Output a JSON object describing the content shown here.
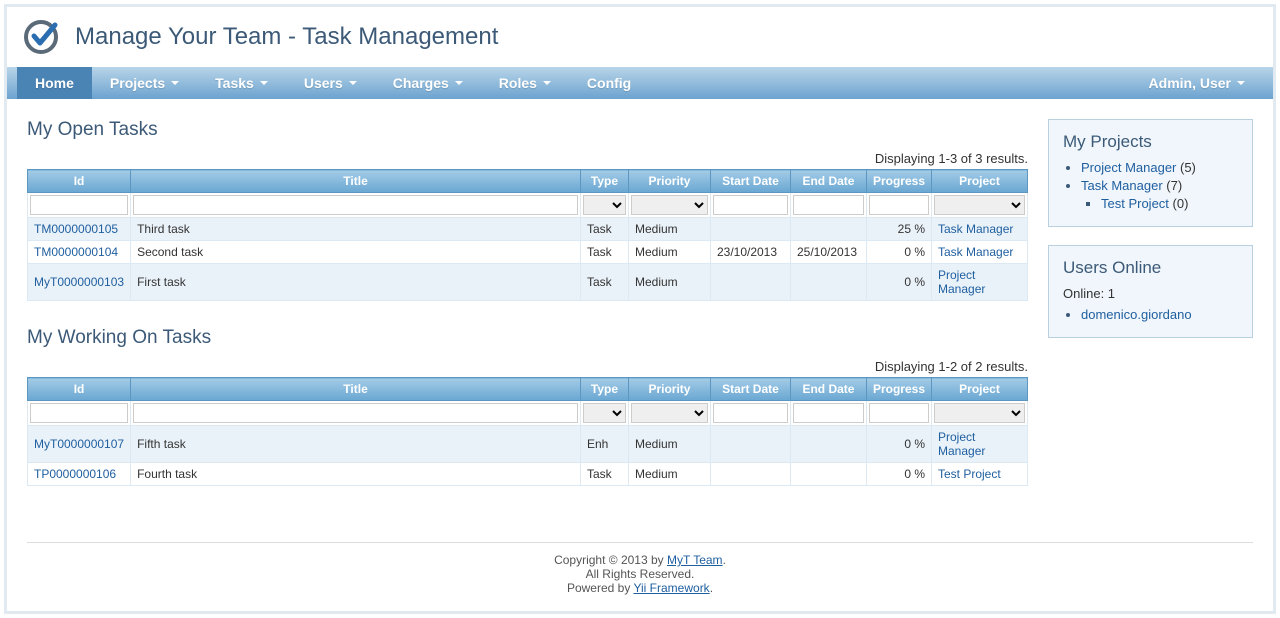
{
  "header": {
    "title": "Manage Your Team - Task Management"
  },
  "nav": {
    "items": [
      {
        "label": "Home",
        "dropdown": false,
        "active": true
      },
      {
        "label": "Projects",
        "dropdown": true,
        "active": false
      },
      {
        "label": "Tasks",
        "dropdown": true,
        "active": false
      },
      {
        "label": "Users",
        "dropdown": true,
        "active": false
      },
      {
        "label": "Charges",
        "dropdown": true,
        "active": false
      },
      {
        "label": "Roles",
        "dropdown": true,
        "active": false
      },
      {
        "label": "Config",
        "dropdown": false,
        "active": false
      }
    ],
    "user": {
      "label": "Admin, User",
      "dropdown": true
    }
  },
  "sections": {
    "open": {
      "title": "My Open Tasks",
      "summary": "Displaying 1-3 of 3 results.",
      "columns": [
        "Id",
        "Title",
        "Type",
        "Priority",
        "Start Date",
        "End Date",
        "Progress",
        "Project"
      ],
      "col_widths": [
        "97px",
        "auto",
        "48px",
        "82px",
        "80px",
        "76px",
        "60px",
        "96px"
      ],
      "filter_types": [
        "text",
        "text",
        "select",
        "select",
        "text",
        "text",
        "text",
        "select"
      ],
      "rows": [
        {
          "id": "TM0000000105",
          "title": "Third task",
          "type": "Task",
          "priority": "Medium",
          "start": "",
          "end": "",
          "progress": "25 %",
          "project": "Task Manager"
        },
        {
          "id": "TM0000000104",
          "title": "Second task",
          "type": "Task",
          "priority": "Medium",
          "start": "23/10/2013",
          "end": "25/10/2013",
          "progress": "0 %",
          "project": "Task Manager"
        },
        {
          "id": "MyT0000000103",
          "title": "First task",
          "type": "Task",
          "priority": "Medium",
          "start": "",
          "end": "",
          "progress": "0 %",
          "project": "Project Manager"
        }
      ]
    },
    "working": {
      "title": "My Working On Tasks",
      "summary": "Displaying 1-2 of 2 results.",
      "columns": [
        "Id",
        "Title",
        "Type",
        "Priority",
        "Start Date",
        "End Date",
        "Progress",
        "Project"
      ],
      "col_widths": [
        "97px",
        "auto",
        "48px",
        "82px",
        "80px",
        "76px",
        "60px",
        "96px"
      ],
      "filter_types": [
        "text",
        "text",
        "select",
        "select",
        "text",
        "text",
        "text",
        "select"
      ],
      "rows": [
        {
          "id": "MyT0000000107",
          "title": "Fifth task",
          "type": "Enh",
          "priority": "Medium",
          "start": "",
          "end": "",
          "progress": "0 %",
          "project": "Project Manager"
        },
        {
          "id": "TP0000000106",
          "title": "Fourth task",
          "type": "Task",
          "priority": "Medium",
          "start": "",
          "end": "",
          "progress": "0 %",
          "project": "Test Project"
        }
      ]
    }
  },
  "sidebar": {
    "projects": {
      "title": "My Projects",
      "items": [
        {
          "name": "Project Manager",
          "count": "(5)"
        },
        {
          "name": "Task Manager",
          "count": "(7)"
        }
      ],
      "nested": [
        {
          "name": "Test Project",
          "count": "(0)"
        }
      ]
    },
    "online": {
      "title": "Users Online",
      "status": "Online: 1",
      "users": [
        "domenico.giordano"
      ]
    }
  },
  "footer": {
    "line1a": "Copyright © 2013 by ",
    "line1link": "MyT Team",
    "line1b": ".",
    "line2": "All Rights Reserved.",
    "line3a": "Powered by ",
    "line3link": "Yii Framework",
    "line3b": "."
  },
  "colors": {
    "accent": "#3c5a78",
    "link": "#1f5fa0",
    "nav_top": "#b8d4e8",
    "nav_bottom": "#6ca3d0",
    "th_top": "#a3cbe6",
    "th_bottom": "#6aa7d2",
    "row_alt": "#eaf2f9",
    "border": "#dde9f2"
  }
}
